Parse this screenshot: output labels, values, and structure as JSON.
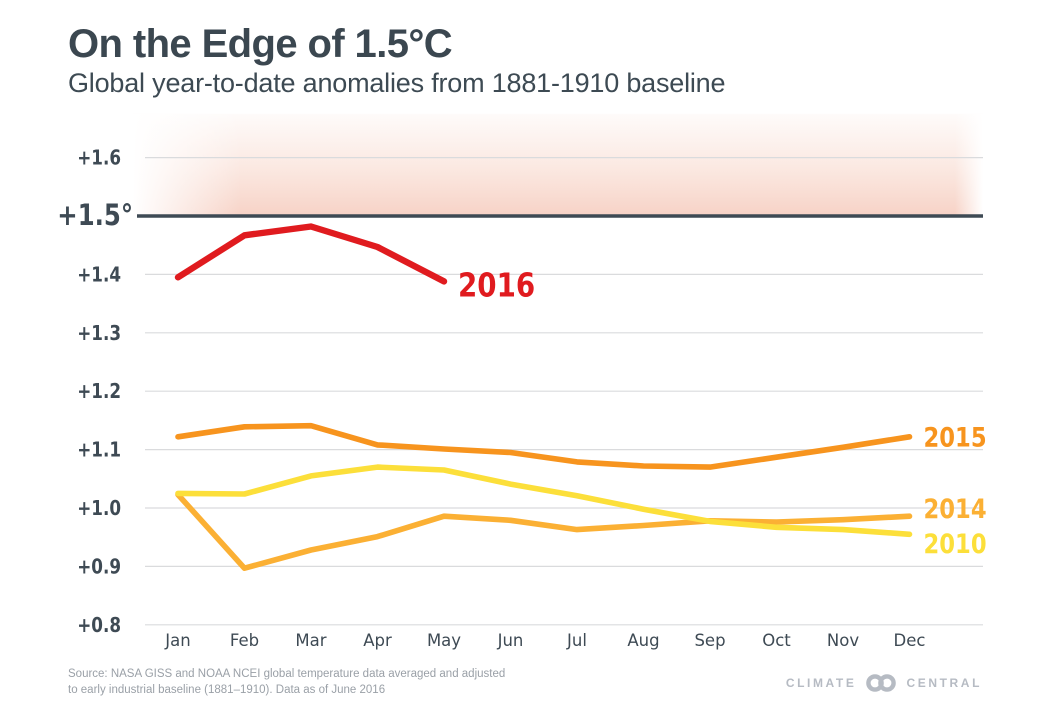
{
  "chart_data": {
    "type": "line",
    "title": "On the Edge of 1.5°C",
    "subtitle": "Global year-to-date anomalies from 1881-1910 baseline",
    "unit": "°C anomaly vs 1881-1910 baseline",
    "x_categories": [
      "Jan",
      "Feb",
      "Mar",
      "Apr",
      "May",
      "Jun",
      "Jul",
      "Aug",
      "Sep",
      "Oct",
      "Nov",
      "Dec"
    ],
    "ylim": [
      0.78,
      1.675
    ],
    "grid": true,
    "legend_position": "line-end-labels",
    "yticks": [
      {
        "label": "+1.6",
        "value": 1.6,
        "threshold": false
      },
      {
        "label": "+1.5°",
        "value": 1.5,
        "threshold": true
      },
      {
        "label": "+1.4",
        "value": 1.4,
        "threshold": false
      },
      {
        "label": "+1.3",
        "value": 1.3,
        "threshold": false
      },
      {
        "label": "+1.2",
        "value": 1.2,
        "threshold": false
      },
      {
        "label": "+1.1",
        "value": 1.1,
        "threshold": false
      },
      {
        "label": "+1.0",
        "value": 1.0,
        "threshold": false
      },
      {
        "label": "+0.9",
        "value": 0.9,
        "threshold": false
      },
      {
        "label": "+0.8",
        "value": 0.8,
        "threshold": false
      }
    ],
    "threshold": {
      "value": 1.5,
      "label": "+1.5°",
      "color": "#3e4a54"
    },
    "danger_band": {
      "from": 1.5,
      "to": 1.675,
      "color": "#f7d4c9"
    },
    "series": [
      {
        "name": "2016",
        "color": "#e01b1f",
        "z": 4,
        "values": [
          1.395,
          1.467,
          1.482,
          1.447,
          1.388
        ]
      },
      {
        "name": "2015",
        "color": "#f7941e",
        "z": 3,
        "values": [
          1.122,
          1.139,
          1.141,
          1.108,
          1.101,
          1.095,
          1.079,
          1.072,
          1.07,
          1.087,
          1.104,
          1.122
        ]
      },
      {
        "name": "2014",
        "color": "#fbb034",
        "z": 1,
        "values": [
          1.023,
          0.897,
          0.928,
          0.951,
          0.986,
          0.979,
          0.963,
          0.97,
          0.978,
          0.976,
          0.98,
          0.986
        ]
      },
      {
        "name": "2010",
        "color": "#fcdf3a",
        "z": 2,
        "values": [
          1.025,
          1.024,
          1.055,
          1.07,
          1.065,
          1.041,
          1.021,
          0.998,
          0.977,
          0.967,
          0.963,
          0.955
        ]
      }
    ]
  },
  "footer": {
    "source_line1": "Source: NASA GISS and NOAA NCEI global temperature data averaged and adjusted",
    "source_line2": "to early industrial baseline (1881–1910). Data as of June 2016",
    "brand_left": "CLIMATE",
    "brand_right": "CENTRAL"
  }
}
